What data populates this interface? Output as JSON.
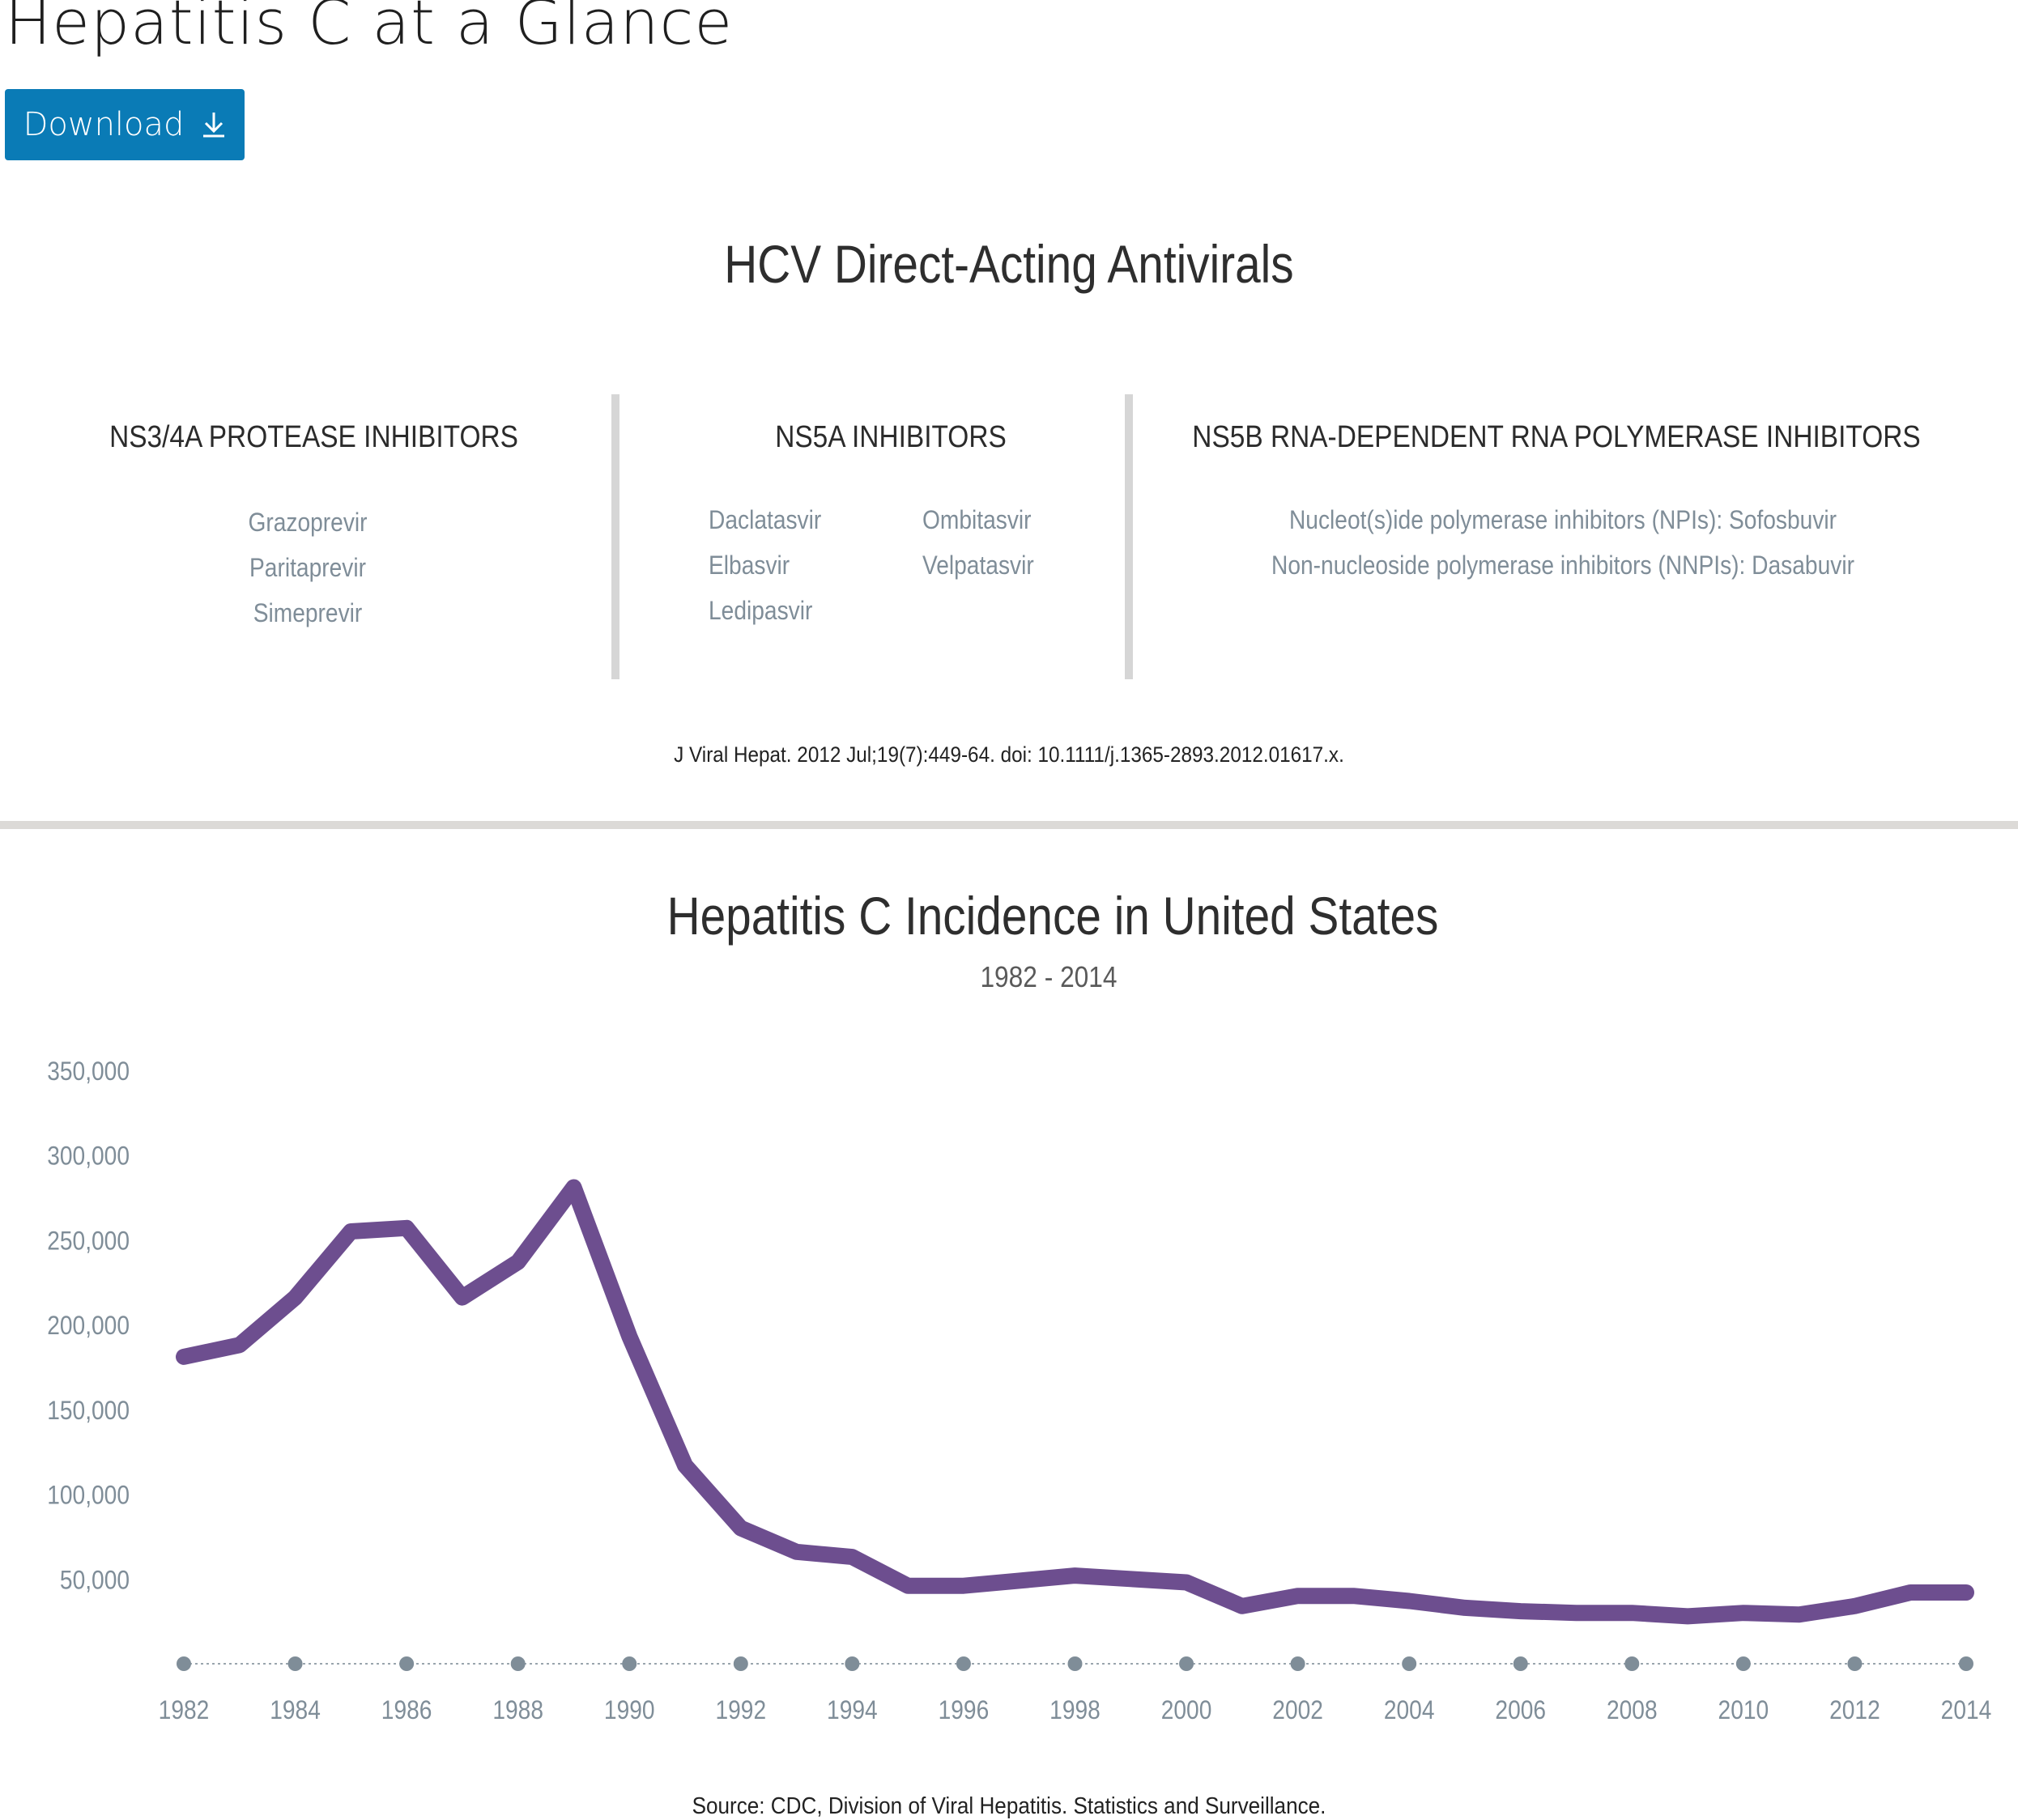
{
  "page": {
    "title": "Hepatitis C at a Glance",
    "download_label": "Download"
  },
  "antivirals": {
    "title": "HCV Direct-Acting Antivirals",
    "columns": [
      {
        "heading": "NS3/4A PROTEASE INHIBITORS",
        "drugs": [
          "Grazoprevir",
          "Paritaprevir",
          "Simeprevir"
        ]
      },
      {
        "heading": "NS5A INHIBITORS",
        "drugs": [
          "Daclatasvir",
          "Elbasvir",
          "Ledipasvir",
          "Ombitasvir",
          "Velpatasvir"
        ]
      },
      {
        "heading": "NS5B RNA-DEPENDENT RNA POLYMERASE INHIBITORS",
        "drugs": [
          "Nucleot(s)ide polymerase inhibitors (NPIs): Sofosbuvir",
          "Non-nucleoside polymerase inhibitors (NNPIs): Dasabuvir"
        ]
      }
    ],
    "citation": "J Viral Hepat. 2012 Jul;19(7):449-64. doi: 10.1111/j.1365-2893.2012.01617.x."
  },
  "incidence": {
    "title": "Hepatitis C Incidence in United States",
    "subtitle": "1982 - 2014",
    "source": "Source: CDC, Division of Viral Hepatitis. Statistics and Surveillance."
  },
  "colors": {
    "button": "#0a7bb6",
    "line": "#6d4e8f",
    "axis_dots": "#7f8d98",
    "muted_text": "#7f8d98",
    "divider": "#d6d6d6"
  },
  "chart_data": {
    "type": "line",
    "title": "Hepatitis C Incidence in United States",
    "subtitle": "1982 - 2014",
    "xlabel": "",
    "ylabel": "",
    "grid": false,
    "ylim": [
      0,
      350000
    ],
    "xlim": [
      1982,
      2014
    ],
    "y_ticks": [
      50000,
      100000,
      150000,
      200000,
      250000,
      300000,
      350000
    ],
    "y_tick_labels": [
      "50,000",
      "100,000",
      "150,000",
      "200,000",
      "250,000",
      "300,000",
      "350,000"
    ],
    "x_ticks": [
      1982,
      1984,
      1986,
      1988,
      1990,
      1992,
      1994,
      1996,
      1998,
      2000,
      2002,
      2004,
      2006,
      2008,
      2010,
      2012,
      2014
    ],
    "x_tick_labels": [
      "1982",
      "1984",
      "1986",
      "1988",
      "1990",
      "1992",
      "1994",
      "1996",
      "1998",
      "2000",
      "2002",
      "2004",
      "2006",
      "2008",
      "2010",
      "2012",
      "2014"
    ],
    "series": [
      {
        "x": [
          1982,
          1983,
          1984,
          1985,
          1986,
          1987,
          1988,
          1989,
          1990,
          1991,
          1992,
          1993,
          1994,
          1995,
          1996,
          1997,
          1998,
          1999,
          2000,
          2001,
          2002,
          2003,
          2004,
          2005,
          2006,
          2007,
          2008,
          2009,
          2010,
          2011,
          2012,
          2013,
          2014
        ],
        "values": [
          181000,
          188000,
          216000,
          255000,
          257000,
          216000,
          237000,
          281000,
          193000,
          117000,
          80000,
          66000,
          63000,
          46000,
          46000,
          49000,
          52000,
          50000,
          48000,
          34000,
          40000,
          40000,
          37000,
          33000,
          31000,
          30000,
          30000,
          28000,
          30000,
          29000,
          34000,
          42000,
          42000
        ]
      }
    ]
  }
}
